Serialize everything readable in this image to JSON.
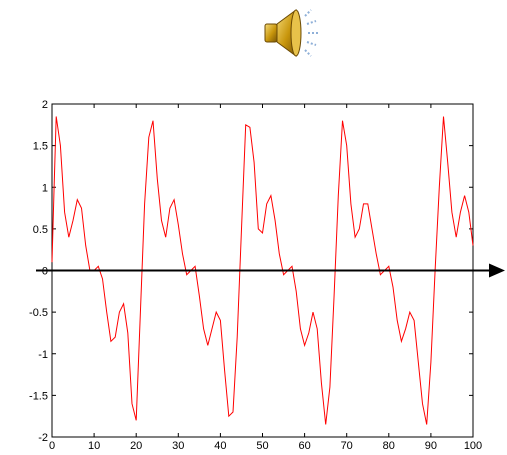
{
  "speaker_icon": "speaker-volume-icon",
  "colors": {
    "series": "#ff0000",
    "axes": "#000000",
    "arrow": "#000000",
    "speaker_body": "#c8960c",
    "sound_waves": "#8fb0d8"
  },
  "chart_data": {
    "type": "line",
    "title": "",
    "xlabel": "",
    "ylabel": "",
    "xlim": [
      0,
      100
    ],
    "ylim": [
      -2,
      2
    ],
    "grid": false,
    "xticks": [
      "0",
      "10",
      "20",
      "30",
      "40",
      "50",
      "60",
      "70",
      "80",
      "90",
      "100"
    ],
    "yticks": [
      "2",
      "1.5",
      "1",
      "0.5",
      "0",
      "-0.5",
      "-1",
      "-1.5",
      "-2"
    ],
    "series": [
      {
        "color": "#ff0000",
        "x": [
          0,
          0.5,
          1,
          2,
          3,
          4,
          5,
          6,
          7,
          8,
          9,
          10,
          11,
          12,
          13,
          14,
          15,
          16,
          17,
          18,
          19,
          20,
          21,
          22,
          23,
          24,
          25,
          26,
          27,
          28,
          29,
          30,
          31,
          32,
          33,
          34,
          35,
          36,
          37,
          38,
          39,
          40,
          41,
          42,
          43,
          44,
          45,
          46,
          47,
          48,
          49,
          50,
          51,
          52,
          53,
          54,
          55,
          56,
          57,
          58,
          59,
          60,
          61,
          62,
          63,
          64,
          65,
          66,
          67,
          68,
          69,
          70,
          71,
          72,
          73,
          74,
          75,
          76,
          77,
          78,
          79,
          80,
          81,
          82,
          83,
          84,
          85,
          86,
          87,
          88,
          89,
          90,
          91,
          92,
          93,
          94,
          95,
          96,
          97,
          98,
          99,
          100
        ],
        "y": [
          0.1,
          1.0,
          1.85,
          1.5,
          0.7,
          0.4,
          0.6,
          0.85,
          0.75,
          0.3,
          0.0,
          0.0,
          0.05,
          -0.1,
          -0.5,
          -0.85,
          -0.8,
          -0.5,
          -0.4,
          -0.75,
          -1.6,
          -1.8,
          -0.5,
          0.8,
          1.6,
          1.8,
          1.1,
          0.6,
          0.4,
          0.75,
          0.85,
          0.55,
          0.2,
          -0.05,
          0.0,
          0.05,
          -0.3,
          -0.7,
          -0.9,
          -0.7,
          -0.5,
          -0.6,
          -1.2,
          -1.75,
          -1.7,
          -0.8,
          0.5,
          1.75,
          1.72,
          1.3,
          0.5,
          0.45,
          0.8,
          0.9,
          0.6,
          0.2,
          -0.05,
          0.0,
          0.05,
          -0.25,
          -0.7,
          -0.9,
          -0.75,
          -0.5,
          -0.7,
          -1.35,
          -1.85,
          -1.4,
          -0.3,
          0.9,
          1.8,
          1.5,
          0.8,
          0.4,
          0.5,
          0.8,
          0.8,
          0.5,
          0.2,
          -0.05,
          0.0,
          0.05,
          -0.2,
          -0.6,
          -0.85,
          -0.7,
          -0.5,
          -0.6,
          -1.1,
          -1.6,
          -1.85,
          -1.1,
          0.0,
          1.0,
          1.85,
          1.3,
          0.7,
          0.4,
          0.7,
          0.9,
          0.7,
          0.3
        ]
      }
    ]
  }
}
